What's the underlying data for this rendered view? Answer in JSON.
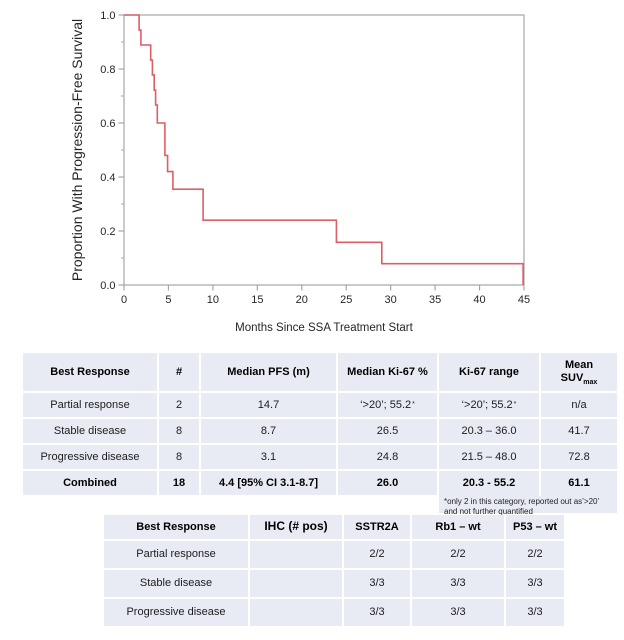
{
  "chart_data": {
    "type": "line",
    "subtype": "kaplan_meier_step",
    "title": "",
    "xlabel": "Months Since SSA Treatment Start",
    "ylabel": "Proportion With Progression-Free Survival",
    "xlim": [
      0,
      45
    ],
    "ylim": [
      0.0,
      1.0
    ],
    "x_ticks": [
      0,
      5,
      10,
      15,
      20,
      25,
      30,
      35,
      40,
      45
    ],
    "y_ticks": [
      "0.0",
      "0.2",
      "0.4",
      "0.6",
      "0.8",
      "1.0"
    ],
    "y_minor_ticks": [
      0.1,
      0.3,
      0.5,
      0.7,
      0.9
    ],
    "grid": false,
    "legend": "none",
    "line_color": "#dd5f66",
    "axis_color": "#a6a6a6",
    "series": [
      {
        "name": "Progression-Free Survival",
        "steps": [
          [
            0,
            1.0
          ],
          [
            1.7,
            0.944
          ],
          [
            1.9,
            0.889
          ],
          [
            3.0,
            0.833
          ],
          [
            3.2,
            0.778
          ],
          [
            3.4,
            0.722
          ],
          [
            3.55,
            0.667
          ],
          [
            3.75,
            0.6
          ],
          [
            4.6,
            0.48
          ],
          [
            4.9,
            0.42
          ],
          [
            5.5,
            0.355
          ],
          [
            8.9,
            0.24
          ],
          [
            23.9,
            0.158
          ],
          [
            29.0,
            0.079
          ],
          [
            44.9,
            0.0
          ]
        ]
      }
    ]
  },
  "summary_table": {
    "cell_bg": "#e9ebf4",
    "headers": [
      {
        "text": "Best Response"
      },
      {
        "text": "#"
      },
      {
        "text": "Median PFS (m)"
      },
      {
        "text": "Median Ki-67 %"
      },
      {
        "text": "Ki-67 range"
      },
      {
        "text": "Mean",
        "text2": "SUV",
        "sub": "max"
      }
    ],
    "rows": [
      {
        "bold": false,
        "cells": [
          "Partial response",
          "2",
          "14.7",
          "‘>20’; 55.2*",
          "‘>20’; 55.2*",
          "n/a"
        ]
      },
      {
        "bold": false,
        "cells": [
          "Stable disease",
          "8",
          "8.7",
          "26.5",
          "20.3 – 36.0",
          "41.7"
        ]
      },
      {
        "bold": false,
        "cells": [
          "Progressive disease",
          "8",
          "3.1",
          "24.8",
          "21.5 – 48.0",
          "72.8"
        ]
      },
      {
        "bold": true,
        "cells": [
          "Combined",
          "18",
          "4.4 [95% CI 3.1-8.7]",
          "26.0",
          "20.3 - 55.2",
          "61.1"
        ]
      }
    ],
    "footnote": "*only 2 in this category, reported out as’>20’ and not further quantified"
  },
  "ihc_table": {
    "headers": [
      "Best Response",
      "IHC (# pos)",
      "SSTR2A",
      "Rb1 – wt",
      "P53 – wt"
    ],
    "rows": [
      {
        "cells": [
          "Partial response",
          "",
          "2/2",
          "2/2",
          "2/2"
        ]
      },
      {
        "cells": [
          "Stable disease",
          "",
          "3/3",
          "3/3",
          "3/3"
        ]
      },
      {
        "cells": [
          "Progressive disease",
          "",
          "3/3",
          "3/3",
          "3/3"
        ]
      }
    ]
  }
}
